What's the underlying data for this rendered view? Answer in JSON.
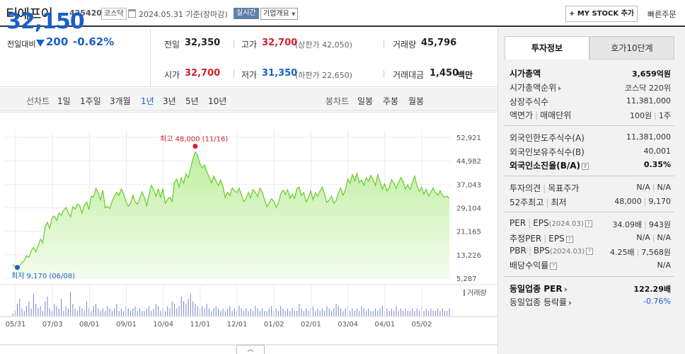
{
  "header": {
    "stock_name": "티에프이",
    "stock_code": "425420",
    "market_badge": "코스닥",
    "date_text": "2024.05.31 기준(장마감)",
    "realtime_badge": "실시간",
    "company_info_label": "기업개요",
    "my_stock_label": "MY STOCK 추가",
    "quick_order_label": "빠른주문"
  },
  "price": {
    "current": "32,150",
    "change_label": "전일대비",
    "change_amount": "200",
    "change_rate": "-0.62%",
    "direction": "down"
  },
  "quote": {
    "prev_close_label": "전일",
    "prev_close": "32,350",
    "high_label": "고가",
    "high": "32,700",
    "upper_limit": "(상한가 42,050)",
    "volume_label": "거래량",
    "volume": "45,796",
    "open_label": "시가",
    "open": "32,700",
    "low_label": "저가",
    "low": "31,350",
    "lower_limit": "(하한가 22,650)",
    "amount_label": "거래대금",
    "amount": "1,450",
    "amount_unit": "백만"
  },
  "period_tabs": {
    "line_chart_label": "선차트",
    "items": [
      "1일",
      "1주일",
      "3개월",
      "1년",
      "3년",
      "5년",
      "10년"
    ],
    "active": "1년",
    "candle_chart_label": "봉차트",
    "candle_items": [
      "일봉",
      "주봉",
      "월봉"
    ]
  },
  "chart_data": {
    "type": "area",
    "y_ticks": [
      "52,921",
      "44,982",
      "37,043",
      "29,104",
      "21,165",
      "13,226",
      "5,287"
    ],
    "ylim": [
      5287,
      52921
    ],
    "x_ticks": [
      "05/31",
      "07/03",
      "08/01",
      "09/01",
      "10/04",
      "11/01",
      "12/01",
      "01/02",
      "02/01",
      "03/04",
      "04/01",
      "05/02"
    ],
    "max_label": "최고 48,000 (11/16)",
    "min_label": "최저 9,170 (06/08)",
    "volume_label": "거래량",
    "values": [
      9900,
      9200,
      9170,
      9500,
      10600,
      11300,
      12800,
      12400,
      14500,
      15700,
      14200,
      16200,
      18500,
      17300,
      22500,
      24200,
      22100,
      25500,
      26300,
      24800,
      27300,
      26600,
      28300,
      29200,
      27500,
      26100,
      29500,
      28700,
      30400,
      29800,
      27300,
      29900,
      31100,
      28500,
      33100,
      32700,
      35700,
      34200,
      31800,
      35100,
      29100,
      29600,
      28900,
      31300,
      33100,
      34300,
      33300,
      35500,
      33800,
      31200,
      29600,
      30700,
      33300,
      31000,
      30300,
      32300,
      34500,
      32600,
      29700,
      33500,
      36700,
      35200,
      33100,
      35500,
      32600,
      35500,
      30600,
      31900,
      32700,
      31300,
      37800,
      38800,
      36100,
      39300,
      37400,
      40700,
      39300,
      42600,
      45600,
      48000,
      46900,
      44000,
      42600,
      43600,
      41300,
      39500,
      37600,
      39800,
      38200,
      36700,
      38500,
      36300,
      32600,
      34400,
      33200,
      35800,
      34900,
      34300,
      35700,
      33500,
      31200,
      32100,
      34300,
      32500,
      35300,
      34300,
      32900,
      35700,
      34500,
      31900,
      29400,
      30800,
      32200,
      31300,
      29200,
      30700,
      33800,
      35100,
      33600,
      35200,
      32400,
      33700,
      32300,
      35600,
      36100,
      33300,
      34200,
      31100,
      32600,
      34900,
      31800,
      34200,
      33000,
      34800,
      36100,
      33700,
      30900,
      31700,
      33100,
      30600,
      31500,
      34200,
      35700,
      33400,
      35100,
      38900,
      37400,
      40300,
      38200,
      40700,
      37600,
      38500,
      36800,
      39300,
      38100,
      40100,
      38600,
      36700,
      40300,
      37800,
      35400,
      37200,
      34800,
      36000,
      38600,
      37500,
      35600,
      37700,
      39300,
      37900,
      35400,
      36900,
      35300,
      37700,
      39800,
      36500,
      34700,
      36000,
      33700,
      35400,
      33100,
      34500,
      35800,
      34200,
      33400,
      34900,
      33200,
      32600,
      33100,
      32150
    ],
    "volumes": [
      1,
      2,
      5,
      7,
      3,
      2,
      4,
      6,
      3,
      9,
      5,
      3,
      4,
      2,
      6,
      8,
      3,
      2,
      5,
      4,
      3,
      7,
      2,
      4,
      3,
      10,
      5,
      3,
      2,
      4,
      3,
      2,
      6,
      3,
      2,
      4,
      5,
      3,
      2,
      3,
      2,
      4,
      3,
      2,
      3,
      5,
      2,
      3,
      2,
      4,
      3,
      2,
      3,
      4,
      2,
      3,
      2,
      2,
      3,
      4,
      2,
      3,
      5,
      4,
      2,
      3,
      2,
      4,
      3,
      6,
      5,
      3,
      4,
      8,
      6,
      5,
      7,
      9,
      6,
      5,
      4,
      3,
      4,
      3,
      5,
      3,
      2,
      3,
      4,
      3,
      2,
      3,
      2,
      3,
      4,
      2,
      3,
      2,
      4,
      3,
      2,
      3,
      2,
      3,
      2,
      4,
      3,
      2,
      3,
      2,
      2,
      3,
      4,
      2,
      3,
      2,
      4,
      3,
      2,
      3,
      2,
      3,
      2,
      2,
      5,
      3,
      2,
      3,
      2,
      3,
      4,
      2,
      3,
      2,
      3,
      2,
      4,
      3,
      2,
      3,
      5,
      4,
      3,
      2,
      3,
      4,
      2,
      3,
      2,
      3,
      2,
      4,
      3,
      2,
      3,
      2,
      2,
      3,
      2,
      3,
      4,
      2,
      3,
      2,
      3,
      2,
      4,
      2,
      3,
      2,
      3,
      2,
      2,
      3,
      2,
      3,
      2,
      4,
      2,
      3,
      2,
      3,
      2,
      2,
      3,
      2,
      3,
      2,
      2,
      3
    ]
  },
  "invest_panel": {
    "tab_invest": "투자정보",
    "tab_hoga": "호가10단계",
    "market_cap_label": "시가총액",
    "market_cap": "3,659억원",
    "market_cap_rank_label": "시가총액순위",
    "market_cap_rank": "코스닥 220위",
    "shares_label": "상장주식수",
    "shares": "11,381,000",
    "face_label": "액면가",
    "trade_unit_label": "매매단위",
    "face_value": "100원",
    "trade_unit": "1주",
    "foreign_limit_label": "외국인한도주식수(A)",
    "foreign_limit": "11,381,000",
    "foreign_hold_label": "외국인보유주식수(B)",
    "foreign_hold": "40,001",
    "foreign_rate_label": "외국인소진율(B/A)",
    "foreign_rate": "0.35%",
    "opinion_label": "투자의견",
    "target_label": "목표주가",
    "opinion": "N/A",
    "target": "N/A",
    "week52_label": "52주최고",
    "week52_low_label": "최저",
    "week52_high": "48,000",
    "week52_low": "9,170",
    "per_label": "PER",
    "eps_label": "EPS",
    "eps_year": "(2024.03)",
    "per": "34.09배",
    "eps": "943원",
    "est_per_label": "추정PER",
    "est_eps_label": "EPS",
    "est_per": "N/A",
    "est_eps": "N/A",
    "pbr_label": "PBR",
    "bps_label": "BPS",
    "bps_year": "(2024.03)",
    "pbr": "4.25배",
    "bps": "7,568원",
    "dividend_label": "배당수익률",
    "dividend": "N/A",
    "industry_per_label": "동일업종 PER",
    "industry_per": "122.29배",
    "industry_rate_label": "동일업종 등락률",
    "industry_rate": "-0.76%"
  },
  "collapse_label": "︿"
}
